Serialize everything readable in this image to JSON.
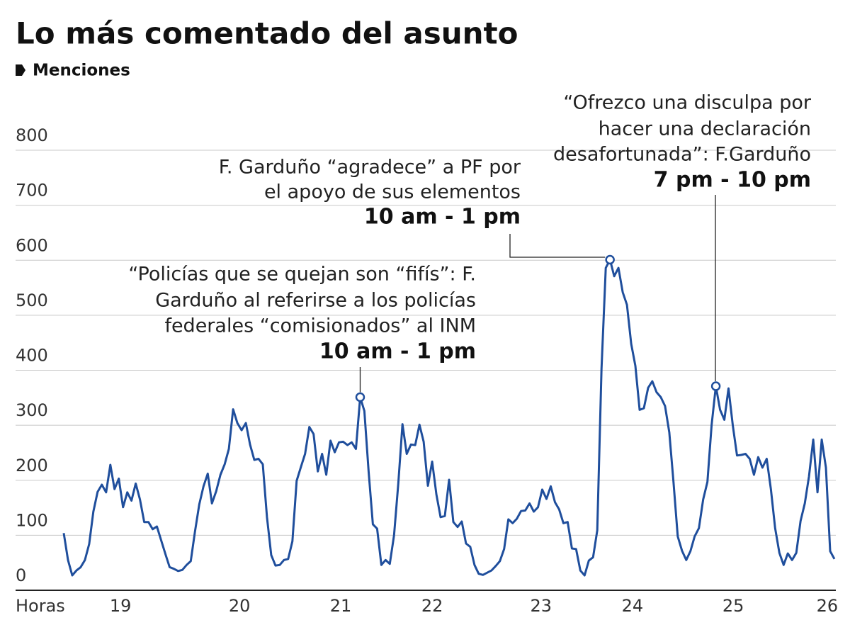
{
  "chart_data": {
    "type": "line",
    "title": "Lo más comentado del asunto",
    "subtitle": "Menciones",
    "x_label": "Horas",
    "color": "#1f4e9c",
    "grid": true,
    "ylim": [
      0,
      800
    ],
    "yticks": [
      0,
      100,
      200,
      300,
      400,
      500,
      600,
      700,
      800
    ],
    "xlim": [
      0,
      182
    ],
    "xticks": [
      {
        "value": 13.4,
        "label": "19"
      },
      {
        "value": 41.5,
        "label": "20"
      },
      {
        "value": 65.4,
        "label": "21"
      },
      {
        "value": 87.0,
        "label": "22"
      },
      {
        "value": 112.7,
        "label": "23"
      },
      {
        "value": 134.3,
        "label": "24"
      },
      {
        "value": 158.1,
        "label": "25"
      },
      {
        "value": 180.3,
        "label": "26"
      }
    ],
    "values": [
      104,
      55,
      27,
      36,
      42,
      55,
      84,
      143,
      179,
      192,
      178,
      228,
      184,
      203,
      151,
      178,
      163,
      194,
      165,
      124,
      124,
      111,
      116,
      91,
      66,
      42,
      39,
      35,
      37,
      46,
      53,
      107,
      156,
      189,
      212,
      158,
      180,
      210,
      229,
      257,
      329,
      304,
      291,
      304,
      265,
      237,
      239,
      229,
      133,
      64,
      45,
      46,
      55,
      57,
      89,
      199,
      224,
      248,
      297,
      284,
      216,
      248,
      210,
      272,
      251,
      269,
      270,
      264,
      269,
      257,
      351,
      326,
      216,
      120,
      112,
      46,
      55,
      48,
      100,
      194,
      302,
      248,
      265,
      264,
      301,
      270,
      190,
      234,
      174,
      133,
      135,
      201,
      124,
      115,
      125,
      85,
      79,
      46,
      30,
      28,
      32,
      36,
      44,
      53,
      75,
      129,
      122,
      130,
      144,
      145,
      158,
      143,
      151,
      183,
      166,
      189,
      160,
      147,
      122,
      124,
      76,
      75,
      36,
      27,
      54,
      60,
      109,
      403,
      586,
      601,
      571,
      586,
      542,
      519,
      448,
      408,
      328,
      331,
      368,
      380,
      360,
      351,
      335,
      287,
      197,
      98,
      72,
      55,
      71,
      98,
      113,
      165,
      197,
      300,
      371,
      328,
      310,
      367,
      300,
      245,
      246,
      248,
      239,
      210,
      242,
      223,
      239,
      184,
      113,
      68,
      46,
      67,
      55,
      68,
      126,
      158,
      207,
      274,
      178,
      274,
      223,
      71,
      57
    ],
    "annotations": [
      {
        "lines": [
          "“Policías que se quejan son “fifís”: F.",
          "Garduño al referirse a los policías",
          "federales “comisionados” al INM"
        ],
        "time": "10 am - 1 pm"
      },
      {
        "lines": [
          "F. Garduño “agradece” a PF por",
          "el apoyo de sus elementos"
        ],
        "time": "10 am - 1 pm"
      },
      {
        "lines": [
          "“Ofrezco una disculpa por",
          "hacer una declaración",
          "desafortunada”: F.Garduño"
        ],
        "time": "7 pm - 10 pm"
      }
    ]
  }
}
